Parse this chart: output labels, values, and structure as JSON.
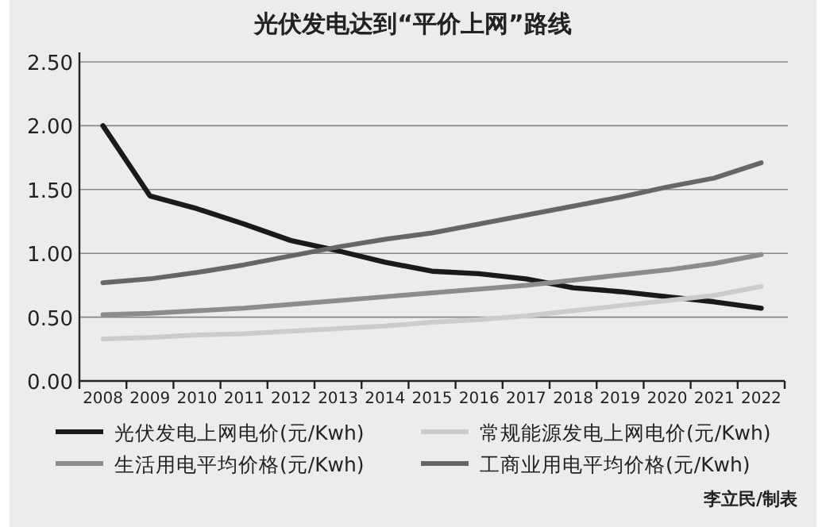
{
  "chart_data": {
    "type": "line",
    "title": "光伏发电达到“平价上网”路线",
    "categories": [
      "2008",
      "2009",
      "2010",
      "2011",
      "2012",
      "2013",
      "2014",
      "2015",
      "2016",
      "2017",
      "2018",
      "2019",
      "2020",
      "2021",
      "2022"
    ],
    "series": [
      {
        "name": "光伏发电上网电价(元/Kwh)",
        "color": "#1a1a1a",
        "values": [
          2.0,
          1.45,
          1.35,
          1.23,
          1.1,
          1.02,
          0.93,
          0.86,
          0.84,
          0.8,
          0.73,
          0.7,
          0.66,
          0.62,
          0.57
        ]
      },
      {
        "name": "常规能源发电上网电价(元/Kwh)",
        "color": "#cccccc",
        "values": [
          0.33,
          0.34,
          0.36,
          0.37,
          0.39,
          0.41,
          0.43,
          0.46,
          0.48,
          0.51,
          0.55,
          0.59,
          0.63,
          0.67,
          0.74
        ]
      },
      {
        "name": "生活用电平均价格(元/Kwh)",
        "color": "#8c8c8c",
        "values": [
          0.52,
          0.53,
          0.55,
          0.57,
          0.6,
          0.63,
          0.66,
          0.69,
          0.72,
          0.75,
          0.79,
          0.83,
          0.87,
          0.92,
          0.99
        ]
      },
      {
        "name": "工商业用电平均价格(元/Kwh)",
        "color": "#666666",
        "values": [
          0.77,
          0.8,
          0.85,
          0.91,
          0.98,
          1.05,
          1.11,
          1.16,
          1.23,
          1.3,
          1.37,
          1.44,
          1.52,
          1.59,
          1.71
        ]
      }
    ],
    "ylim": [
      0,
      2.5
    ],
    "yticks": [
      {
        "value": 0,
        "label": "0.00"
      },
      {
        "value": 0.5,
        "label": "0.50"
      },
      {
        "value": 1,
        "label": "1.00"
      },
      {
        "value": 1.5,
        "label": "1.50"
      },
      {
        "value": 2,
        "label": "2.00"
      },
      {
        "value": 2.5,
        "label": "2.50"
      }
    ],
    "grid": "y",
    "legend": "bottom",
    "marker": "none",
    "line_style": "solid",
    "annotations": [
      "李立民/制表"
    ]
  }
}
